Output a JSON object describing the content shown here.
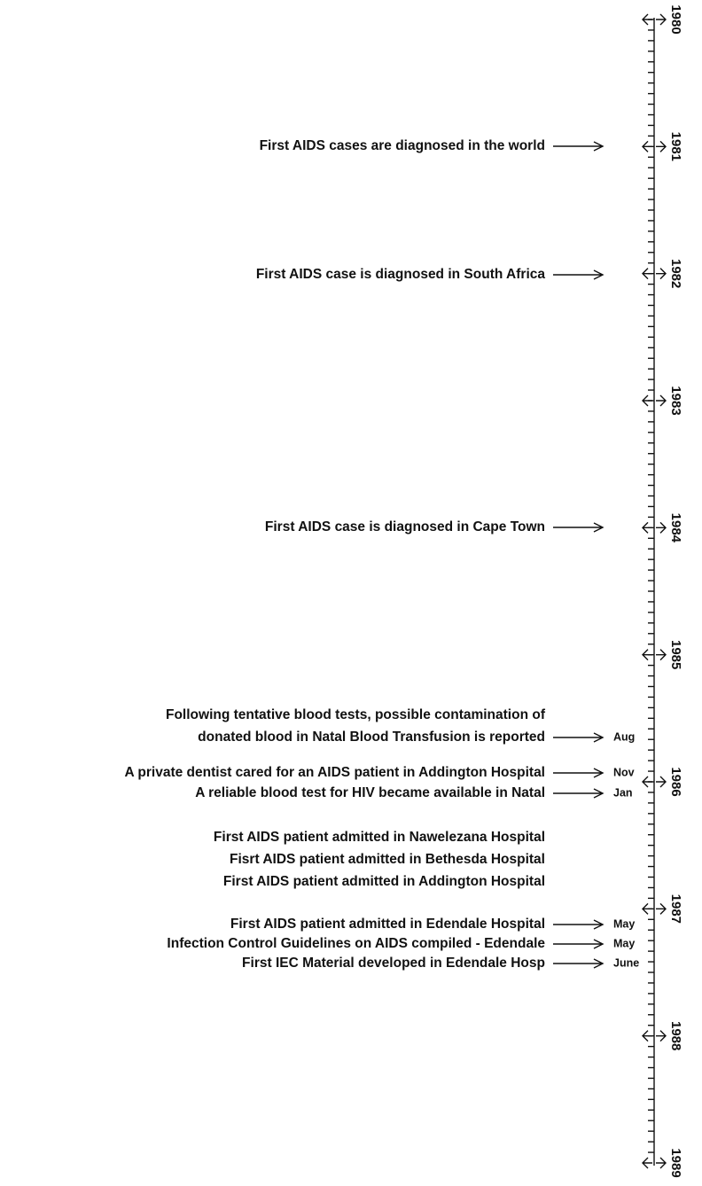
{
  "timeline": {
    "years": [
      "1980",
      "1981",
      "1982",
      "1983",
      "1984",
      "1985",
      "1986",
      "1987",
      "1988",
      "1989"
    ],
    "events": [
      {
        "lines": [
          "First AIDS cases are diagnosed in the world"
        ]
      },
      {
        "lines": [
          "First AIDS case is diagnosed in South Africa"
        ]
      },
      {
        "lines": [
          "First AIDS case is diagnosed in Cape Town"
        ]
      },
      {
        "lines": [
          "Following tentative blood tests, possible contamination of",
          "donated blood in Natal Blood Transfusion is reported"
        ],
        "month": "Aug"
      },
      {
        "lines": [
          "A private dentist cared for an AIDS patient in Addington Hospital"
        ],
        "month": "Nov"
      },
      {
        "lines": [
          "A reliable blood test for HIV became available in Natal"
        ],
        "month": "Jan"
      },
      {
        "lines": [
          "First AIDS patient admitted in Nawelezana Hospital",
          "Fisrt AIDS patient admitted in Bethesda Hospital",
          "First AIDS patient admitted in Addington Hospital"
        ]
      },
      {
        "lines": [
          "First AIDS patient admitted in Edendale Hospital"
        ],
        "month": "May"
      },
      {
        "lines": [
          "Infection Control Guidelines on AIDS compiled - Edendale"
        ],
        "month": "May"
      },
      {
        "lines": [
          "First IEC Material developed in Edendale Hosp"
        ],
        "month": "June"
      }
    ]
  }
}
